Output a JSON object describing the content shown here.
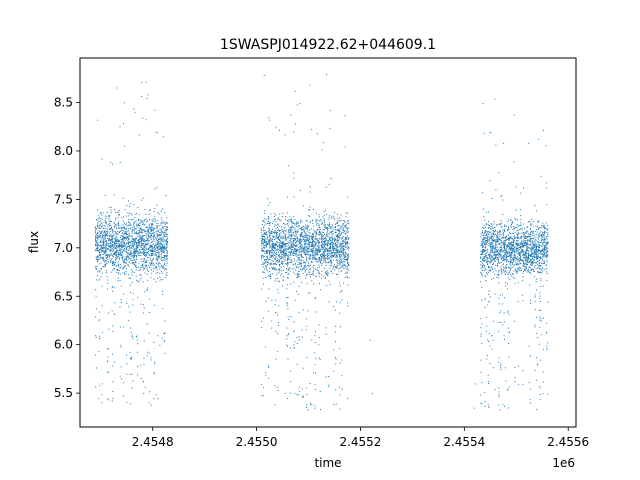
{
  "chart_data": {
    "type": "scatter",
    "title": "1SWASPJ014922.62+044609.1",
    "xlabel": "time",
    "ylabel": "flux",
    "x_offset_label": "1e6",
    "xlim": [
      2454660,
      2455615
    ],
    "ylim": [
      5.15,
      8.96
    ],
    "x_ticks": [
      2454800,
      2455000,
      2455200,
      2455400,
      2455600
    ],
    "x_tick_labels": [
      "2.4548",
      "2.4550",
      "2.4552",
      "2.4554",
      "2.4556"
    ],
    "y_ticks": [
      5.5,
      6.0,
      6.5,
      7.0,
      7.5,
      8.0,
      8.5
    ],
    "y_tick_labels": [
      "5.5",
      "6.0",
      "6.5",
      "7.0",
      "7.5",
      "8.0",
      "8.5"
    ],
    "grid": false,
    "marker_color": "#1f77b4",
    "series": [
      {
        "name": "",
        "observing_seasons": [
          {
            "t_start": 2454688,
            "t_end": 2454828,
            "median_flux": 7.05,
            "typical_low": 6.65,
            "typical_high": 7.5,
            "min_flux": 5.38,
            "max_flux": 8.74
          },
          {
            "t_start": 2455008,
            "t_end": 2455177,
            "median_flux": 7.03,
            "typical_low": 6.6,
            "typical_high": 7.45,
            "min_flux": 5.32,
            "max_flux": 8.8
          },
          {
            "t_start": 2455430,
            "t_end": 2455560,
            "median_flux": 7.0,
            "typical_low": 6.65,
            "typical_high": 7.4,
            "min_flux": 5.32,
            "max_flux": 8.6
          }
        ],
        "isolated_points": [
          {
            "x": 2455218,
            "y": 6.05
          },
          {
            "x": 2455222,
            "y": 5.5
          },
          {
            "x": 2455418,
            "y": 5.35
          },
          {
            "x": 2455420,
            "y": 5.6
          }
        ]
      }
    ]
  }
}
